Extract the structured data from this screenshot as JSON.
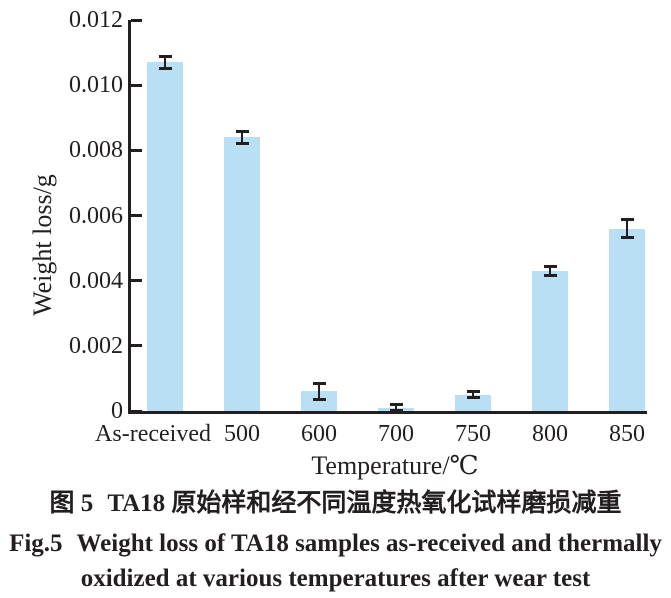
{
  "chart_data": {
    "type": "bar",
    "categories": [
      "As-received",
      "500",
      "600",
      "700",
      "750",
      "800",
      "850"
    ],
    "values": [
      0.0107,
      0.0084,
      0.0006,
      0.0001,
      0.0005,
      0.0043,
      0.0056
    ],
    "errors": [
      0.0002,
      0.0002,
      0.00025,
      0.0001,
      0.0001,
      0.00015,
      0.0003
    ],
    "xlabel": "Temperature/℃",
    "ylabel": "Weight loss/g",
    "ylim": [
      0,
      0.012
    ],
    "yticks": [
      0,
      0.002,
      0.004,
      0.006,
      0.008,
      0.01,
      0.012
    ],
    "ytick_labels": [
      "0",
      "0.002",
      "0.004",
      "0.006",
      "0.008",
      "0.010",
      "0.012"
    ],
    "grid": false,
    "legend": "none",
    "bar_color": "#b9dff5",
    "axis_color": "#231f20",
    "error_bar_color": "#231f20"
  },
  "caption": {
    "zh_label": "图 5",
    "zh_text": "TA18 原始样和经不同温度热氧化试样磨损减重",
    "en_label": "Fig.5",
    "en_line1": "Weight loss of TA18 samples as-received and thermally",
    "en_line2": "oxidized at various temperatures after wear test"
  }
}
